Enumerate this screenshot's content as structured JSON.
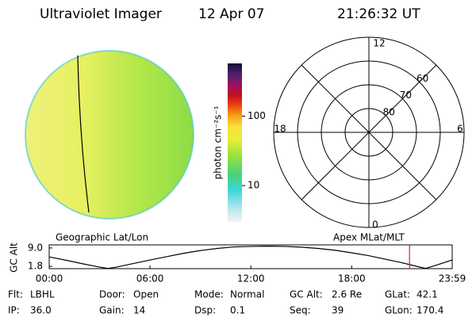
{
  "header": {
    "title": "Ultraviolet Imager",
    "date": "12 Apr 07",
    "time": "21:26:32 UT"
  },
  "colorbar": {
    "label": "photon cm⁻²s⁻¹",
    "log_scale": true,
    "lim": [
      3,
      575
    ],
    "ticks": [
      10,
      100
    ]
  },
  "polar": {
    "mlt_labels": {
      "top": "12",
      "right": "6",
      "bottom": "0",
      "left": "18"
    },
    "lat_labels": [
      80,
      70,
      60
    ]
  },
  "chart_data": {
    "type": "line",
    "title_left": "Geographic Lat/Lon",
    "title_right": "Apex MLat/MLT",
    "y_label": "GC Alt",
    "x": [
      0,
      1,
      2,
      3,
      3.5,
      4,
      5,
      6,
      7,
      8,
      9,
      10,
      11,
      12,
      13,
      14,
      15,
      16,
      17,
      18,
      19,
      20,
      21,
      22,
      22.4,
      23,
      23.98
    ],
    "series": [
      {
        "name": "GC Alt",
        "color": "#000000",
        "values": [
          5.5,
          4.2,
          2.8,
          1.5,
          1.0,
          1.5,
          2.9,
          4.3,
          5.6,
          6.9,
          8.0,
          8.8,
          9.4,
          9.6,
          9.7,
          9.6,
          9.3,
          8.8,
          8.1,
          7.1,
          6.0,
          4.6,
          3.2,
          1.6,
          1.0,
          2.2,
          4.3
        ]
      }
    ],
    "xlim": [
      0,
      23.98
    ],
    "ylim": [
      0.9,
      10.2
    ],
    "xticks": [
      {
        "value": 0,
        "label": "00:00"
      },
      {
        "value": 6,
        "label": "06:00"
      },
      {
        "value": 12,
        "label": "12:00"
      },
      {
        "value": 18,
        "label": "18:00"
      },
      {
        "value": 23.98,
        "label": "23:59"
      }
    ],
    "yticks": [
      {
        "value": 9.0,
        "label": "9.0"
      },
      {
        "value": 1.8,
        "label": "1.8"
      }
    ],
    "marker_x": 21.44,
    "marker_color": "#e0201b"
  },
  "info": {
    "rows": [
      [
        [
          "Flt:",
          "LBHL"
        ],
        [
          "Door:",
          "Open"
        ],
        [
          "Mode:",
          "Normal"
        ],
        [
          "GC Alt:",
          "2.6 Re"
        ],
        [
          "GLat:",
          "42.1"
        ]
      ],
      [
        [
          "IP:",
          "36.0"
        ],
        [
          "Gain:",
          "14"
        ],
        [
          "Dsp:",
          "0.1"
        ],
        [
          "Seq:",
          "39"
        ],
        [
          "GLon:",
          "170.4"
        ]
      ]
    ]
  }
}
